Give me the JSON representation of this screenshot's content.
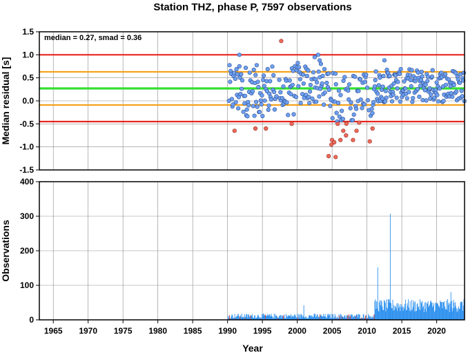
{
  "title": "Station THZ, phase P, 7597 observations",
  "chart_data": [
    {
      "type": "scatter",
      "ylabel": "Median residual [s]",
      "ylim": [
        -1.5,
        1.5
      ],
      "xlim": [
        1963,
        2024
      ],
      "yticks": [
        "-1.5",
        "-1.0",
        "-0.5",
        "0.0",
        "0.5",
        "1.0",
        "1.5"
      ],
      "grid": true,
      "annotation": "median = 0.27, smad = 0.36",
      "reference_lines": [
        {
          "y": 1.0,
          "color": "#e8231b"
        },
        {
          "y": 0.63,
          "color": "#f5a21b"
        },
        {
          "y": 0.27,
          "color": "#33e033"
        },
        {
          "y": -0.09,
          "color": "#f5a21b"
        },
        {
          "y": -0.45,
          "color": "#e8231b"
        }
      ],
      "point_colors": {
        "inlier": "#6ea0f0",
        "outlier": "#f06a5a"
      },
      "note": "Approximately 450 monthly median residual points between 1990 and 2024; values mostly between -0.45 and 1.0, outliers below -0.45 or above 1.0 drawn in red."
    },
    {
      "type": "bar",
      "xlabel": "Year",
      "ylabel": "Observations",
      "ylim": [
        0,
        400
      ],
      "xlim": [
        1963,
        2024
      ],
      "xticks": [
        "1965",
        "1970",
        "1975",
        "1980",
        "1985",
        "1990",
        "1995",
        "2000",
        "2005",
        "2010",
        "2015",
        "2020"
      ],
      "yticks": [
        "0",
        "100",
        "200",
        "300",
        "400"
      ],
      "grid": true,
      "bar_color": "#2b8fef",
      "peaks": [
        {
          "x": 2011.5,
          "y": 152
        },
        {
          "x": 2013.3,
          "y": 307
        },
        {
          "x": 2022.0,
          "y": 80
        },
        {
          "x": 2000.9,
          "y": 42
        }
      ],
      "note": "Monthly observation counts; about 5-20 per month 1990-2010, about 25-60 per month 2011-2024."
    }
  ]
}
